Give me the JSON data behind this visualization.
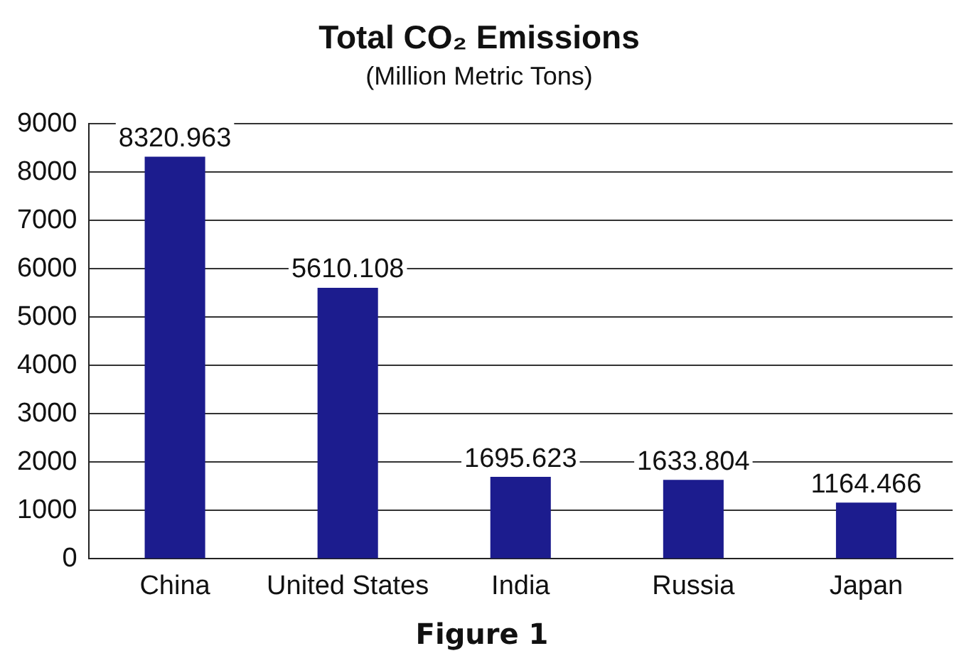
{
  "chart_data": {
    "type": "bar",
    "title": "Total CO₂ Emissions",
    "subtitle": "(Million Metric Tons)",
    "categories": [
      "China",
      "United States",
      "India",
      "Russia",
      "Japan"
    ],
    "values": [
      8320.963,
      5610.108,
      1695.623,
      1633.804,
      1164.466
    ],
    "value_labels": [
      "8320.963",
      "5610.108",
      "1695.623",
      "1633.804",
      "1164.466"
    ],
    "color": "#1c1c8e",
    "ylim": [
      0,
      9000
    ],
    "yticks": [
      0,
      1000,
      2000,
      3000,
      4000,
      5000,
      6000,
      7000,
      8000,
      9000
    ],
    "grid": "y",
    "legend": false,
    "annotations": [
      "Figure 1"
    ]
  }
}
